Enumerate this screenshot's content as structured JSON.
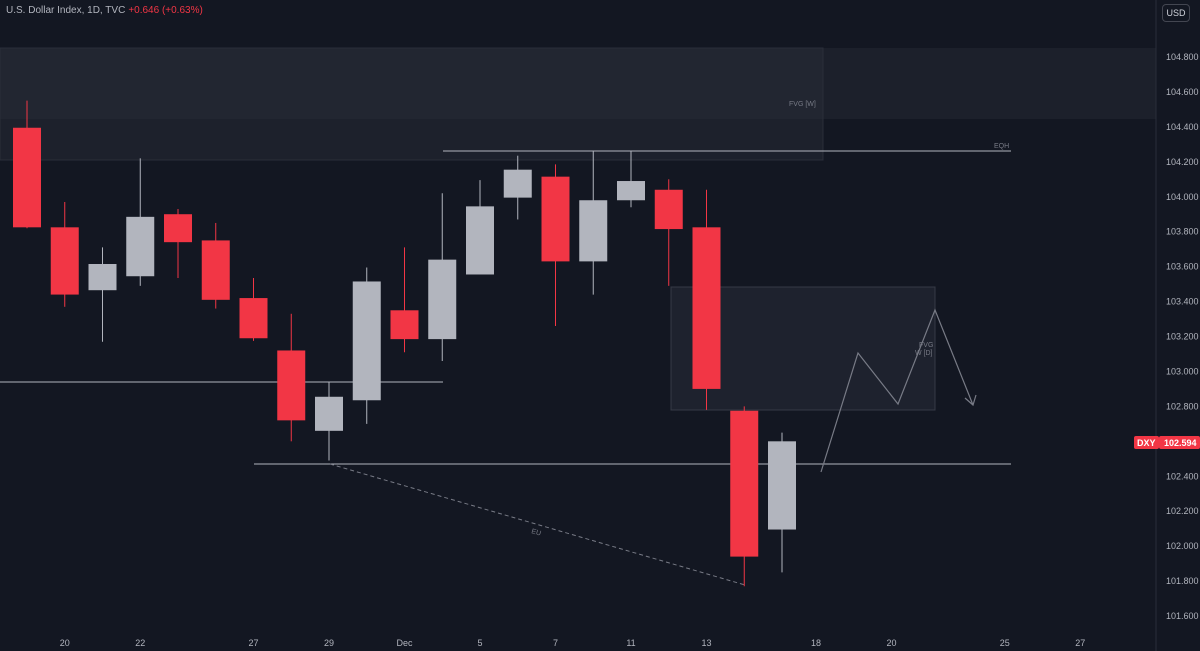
{
  "header": {
    "symbol_title": "U.S. Dollar Index, 1D, TVC",
    "change": "+0.646 (+0.63%)"
  },
  "currency_button": "USD",
  "colors": {
    "up": "#b2b5be",
    "down": "#f23645",
    "background": "#131722",
    "line": "#b2b5be"
  },
  "chart_data": {
    "type": "candlestick",
    "symbol": "DXY",
    "last_price": "102.594",
    "ylim": [
      101.5,
      105.05
    ],
    "y_ticks": [
      "104.800",
      "104.600",
      "104.400",
      "104.200",
      "104.000",
      "103.800",
      "103.600",
      "103.400",
      "103.200",
      "103.000",
      "102.800",
      "102.400",
      "102.200",
      "102.000",
      "101.800",
      "101.600"
    ],
    "x_ticks": [
      "20",
      "22",
      "27",
      "29",
      "Dec",
      "5",
      "7",
      "11",
      "13",
      "18",
      "20",
      "25",
      "27"
    ],
    "candles": [
      {
        "o": 104.395,
        "h": 104.55,
        "l": 103.82,
        "c": 103.825
      },
      {
        "o": 103.825,
        "h": 103.97,
        "l": 103.37,
        "c": 103.44
      },
      {
        "o": 103.465,
        "h": 103.71,
        "l": 103.17,
        "c": 103.615
      },
      {
        "o": 103.545,
        "h": 104.22,
        "l": 103.49,
        "c": 103.885
      },
      {
        "o": 103.9,
        "h": 103.93,
        "l": 103.535,
        "c": 103.74
      },
      {
        "o": 103.75,
        "h": 103.85,
        "l": 103.36,
        "c": 103.41
      },
      {
        "o": 103.42,
        "h": 103.535,
        "l": 103.175,
        "c": 103.19
      },
      {
        "o": 103.12,
        "h": 103.33,
        "l": 102.6,
        "c": 102.72
      },
      {
        "o": 102.66,
        "h": 102.94,
        "l": 102.49,
        "c": 102.855
      },
      {
        "o": 102.835,
        "h": 103.595,
        "l": 102.7,
        "c": 103.515
      },
      {
        "o": 103.35,
        "h": 103.71,
        "l": 103.11,
        "c": 103.185
      },
      {
        "o": 103.185,
        "h": 104.02,
        "l": 103.06,
        "c": 103.64
      },
      {
        "o": 103.555,
        "h": 104.095,
        "l": 103.555,
        "c": 103.945
      },
      {
        "o": 103.995,
        "h": 104.235,
        "l": 103.87,
        "c": 104.155
      },
      {
        "o": 104.115,
        "h": 104.185,
        "l": 103.26,
        "c": 103.63
      },
      {
        "o": 103.63,
        "h": 104.265,
        "l": 103.44,
        "c": 103.98
      },
      {
        "o": 103.98,
        "h": 104.265,
        "l": 103.94,
        "c": 104.09
      },
      {
        "o": 104.04,
        "h": 104.1,
        "l": 103.49,
        "c": 103.815
      },
      {
        "o": 103.825,
        "h": 104.04,
        "l": 102.78,
        "c": 102.9
      },
      {
        "o": 102.775,
        "h": 102.8,
        "l": 101.77,
        "c": 101.94
      },
      {
        "o": 102.095,
        "h": 102.65,
        "l": 101.85,
        "c": 102.6
      }
    ],
    "annotations": {
      "fvg_weekly_label": "FVG [W]",
      "fvg_daily_label_1": "FVG",
      "fvg_daily_label_2": "W [D]",
      "eqh_label": "EQH",
      "eu_label": "EU"
    }
  }
}
